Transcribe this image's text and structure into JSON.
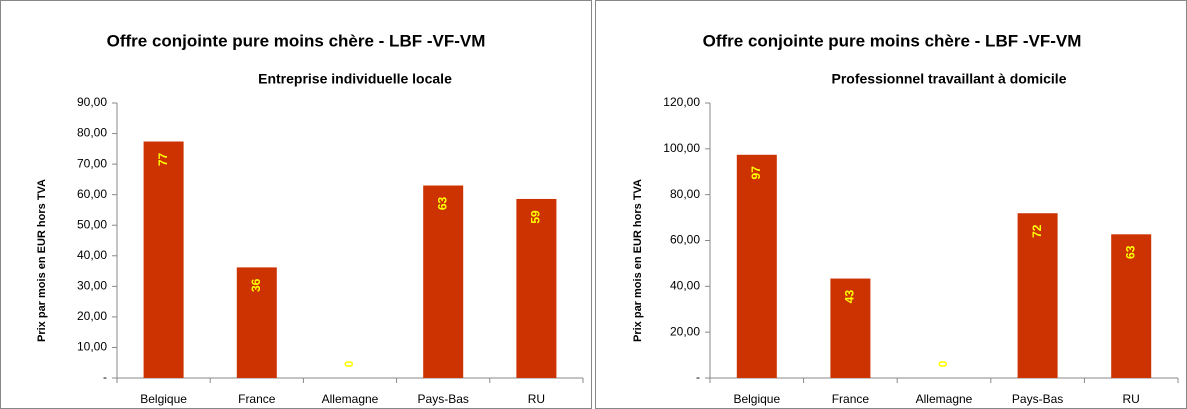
{
  "chart_data": [
    {
      "type": "bar",
      "title": "Offre conjointe pure moins chère - LBF -VF-VM",
      "subtitle": "Entreprise individuelle locale",
      "y_label": "Prix par mois en EUR hors TVA",
      "categories": [
        "Belgique",
        "France",
        "Allemagne",
        "Pays-Bas",
        "RU"
      ],
      "values": [
        77.4,
        36.2,
        0,
        63.0,
        58.6
      ],
      "value_labels": [
        "77",
        "36",
        "0",
        "63",
        "59"
      ],
      "color": "#cc3300",
      "label_color": "#ffff00",
      "ylim": [
        0,
        90
      ],
      "yticks": [
        {
          "value": 0,
          "label": "-"
        },
        {
          "value": 10,
          "label": "10,00"
        },
        {
          "value": 20,
          "label": "20,00"
        },
        {
          "value": 30,
          "label": "30,00"
        },
        {
          "value": 40,
          "label": "40,00"
        },
        {
          "value": 50,
          "label": "50,00"
        },
        {
          "value": 60,
          "label": "60,00"
        },
        {
          "value": 70,
          "label": "70,00"
        },
        {
          "value": 80,
          "label": "80,00"
        },
        {
          "value": 90,
          "label": "90,00"
        }
      ],
      "grid": false
    },
    {
      "type": "bar",
      "title": "Offre conjointe pure moins chère - LBF -VF-VM",
      "subtitle": "Professionnel travaillant à domicile",
      "y_label": "Prix par mois en EUR hors TVA",
      "categories": [
        "Belgique",
        "France",
        "Allemagne",
        "Pays-Bas",
        "RU"
      ],
      "values": [
        97.4,
        43.4,
        0,
        71.9,
        62.7
      ],
      "value_labels": [
        "97",
        "43",
        "0",
        "72",
        "63"
      ],
      "color": "#cc3300",
      "label_color": "#ffff00",
      "ylim": [
        0,
        120
      ],
      "yticks": [
        {
          "value": 0,
          "label": "-"
        },
        {
          "value": 20,
          "label": "20,00"
        },
        {
          "value": 40,
          "label": "40,00"
        },
        {
          "value": 60,
          "label": "60,00"
        },
        {
          "value": 80,
          "label": "80,00"
        },
        {
          "value": 100,
          "label": "100,00"
        },
        {
          "value": 120,
          "label": "120,00"
        }
      ],
      "grid": false
    }
  ]
}
